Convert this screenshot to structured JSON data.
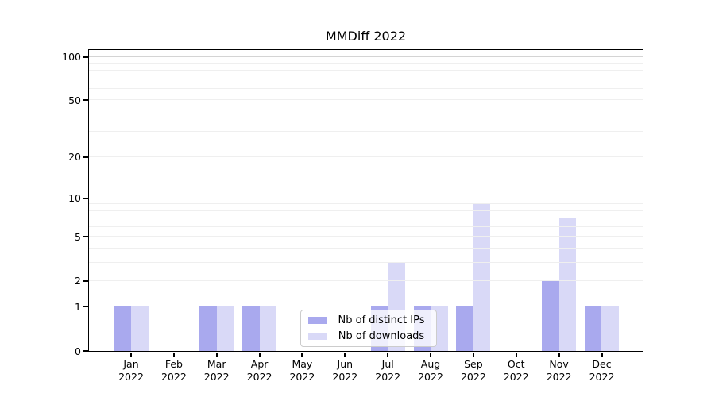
{
  "figure": {
    "title": "MMDiff 2022"
  },
  "chart_data": {
    "type": "bar",
    "title": "MMDiff 2022",
    "xlabel": "",
    "ylabel": "",
    "categories": [
      "Jan",
      "Feb",
      "Mar",
      "Apr",
      "May",
      "Jun",
      "Jul",
      "Aug",
      "Sep",
      "Oct",
      "Nov",
      "Dec"
    ],
    "category_year": "2022",
    "series": [
      {
        "name": "Nb of distinct IPs",
        "color": "#a9a9ee",
        "values": [
          1,
          0,
          1,
          1,
          0,
          0,
          1,
          1,
          1,
          0,
          2,
          1
        ]
      },
      {
        "name": "Nb of downloads",
        "color": "#d9d9f7",
        "values": [
          1,
          0,
          1,
          1,
          0,
          0,
          3,
          1,
          9,
          0,
          7,
          1
        ]
      }
    ],
    "y_scale": "log10(1+v)",
    "y_axis_min": 0,
    "y_axis_max": 110,
    "y_tick_labels": [
      0,
      1,
      2,
      5,
      10,
      20,
      50,
      100
    ],
    "gridlines_major": [
      1,
      10,
      100
    ],
    "gridlines_minor": [
      2,
      3,
      4,
      5,
      6,
      7,
      8,
      9,
      20,
      30,
      40,
      50,
      60,
      70,
      80,
      90
    ],
    "grid_minor_color": "#efefef",
    "grid_major_color": "#d4d4d4",
    "axis_color": "#000000",
    "legend_position": "bottom-center",
    "legend_labels": [
      "Nb of distinct IPs",
      "Nb of downloads"
    ]
  }
}
